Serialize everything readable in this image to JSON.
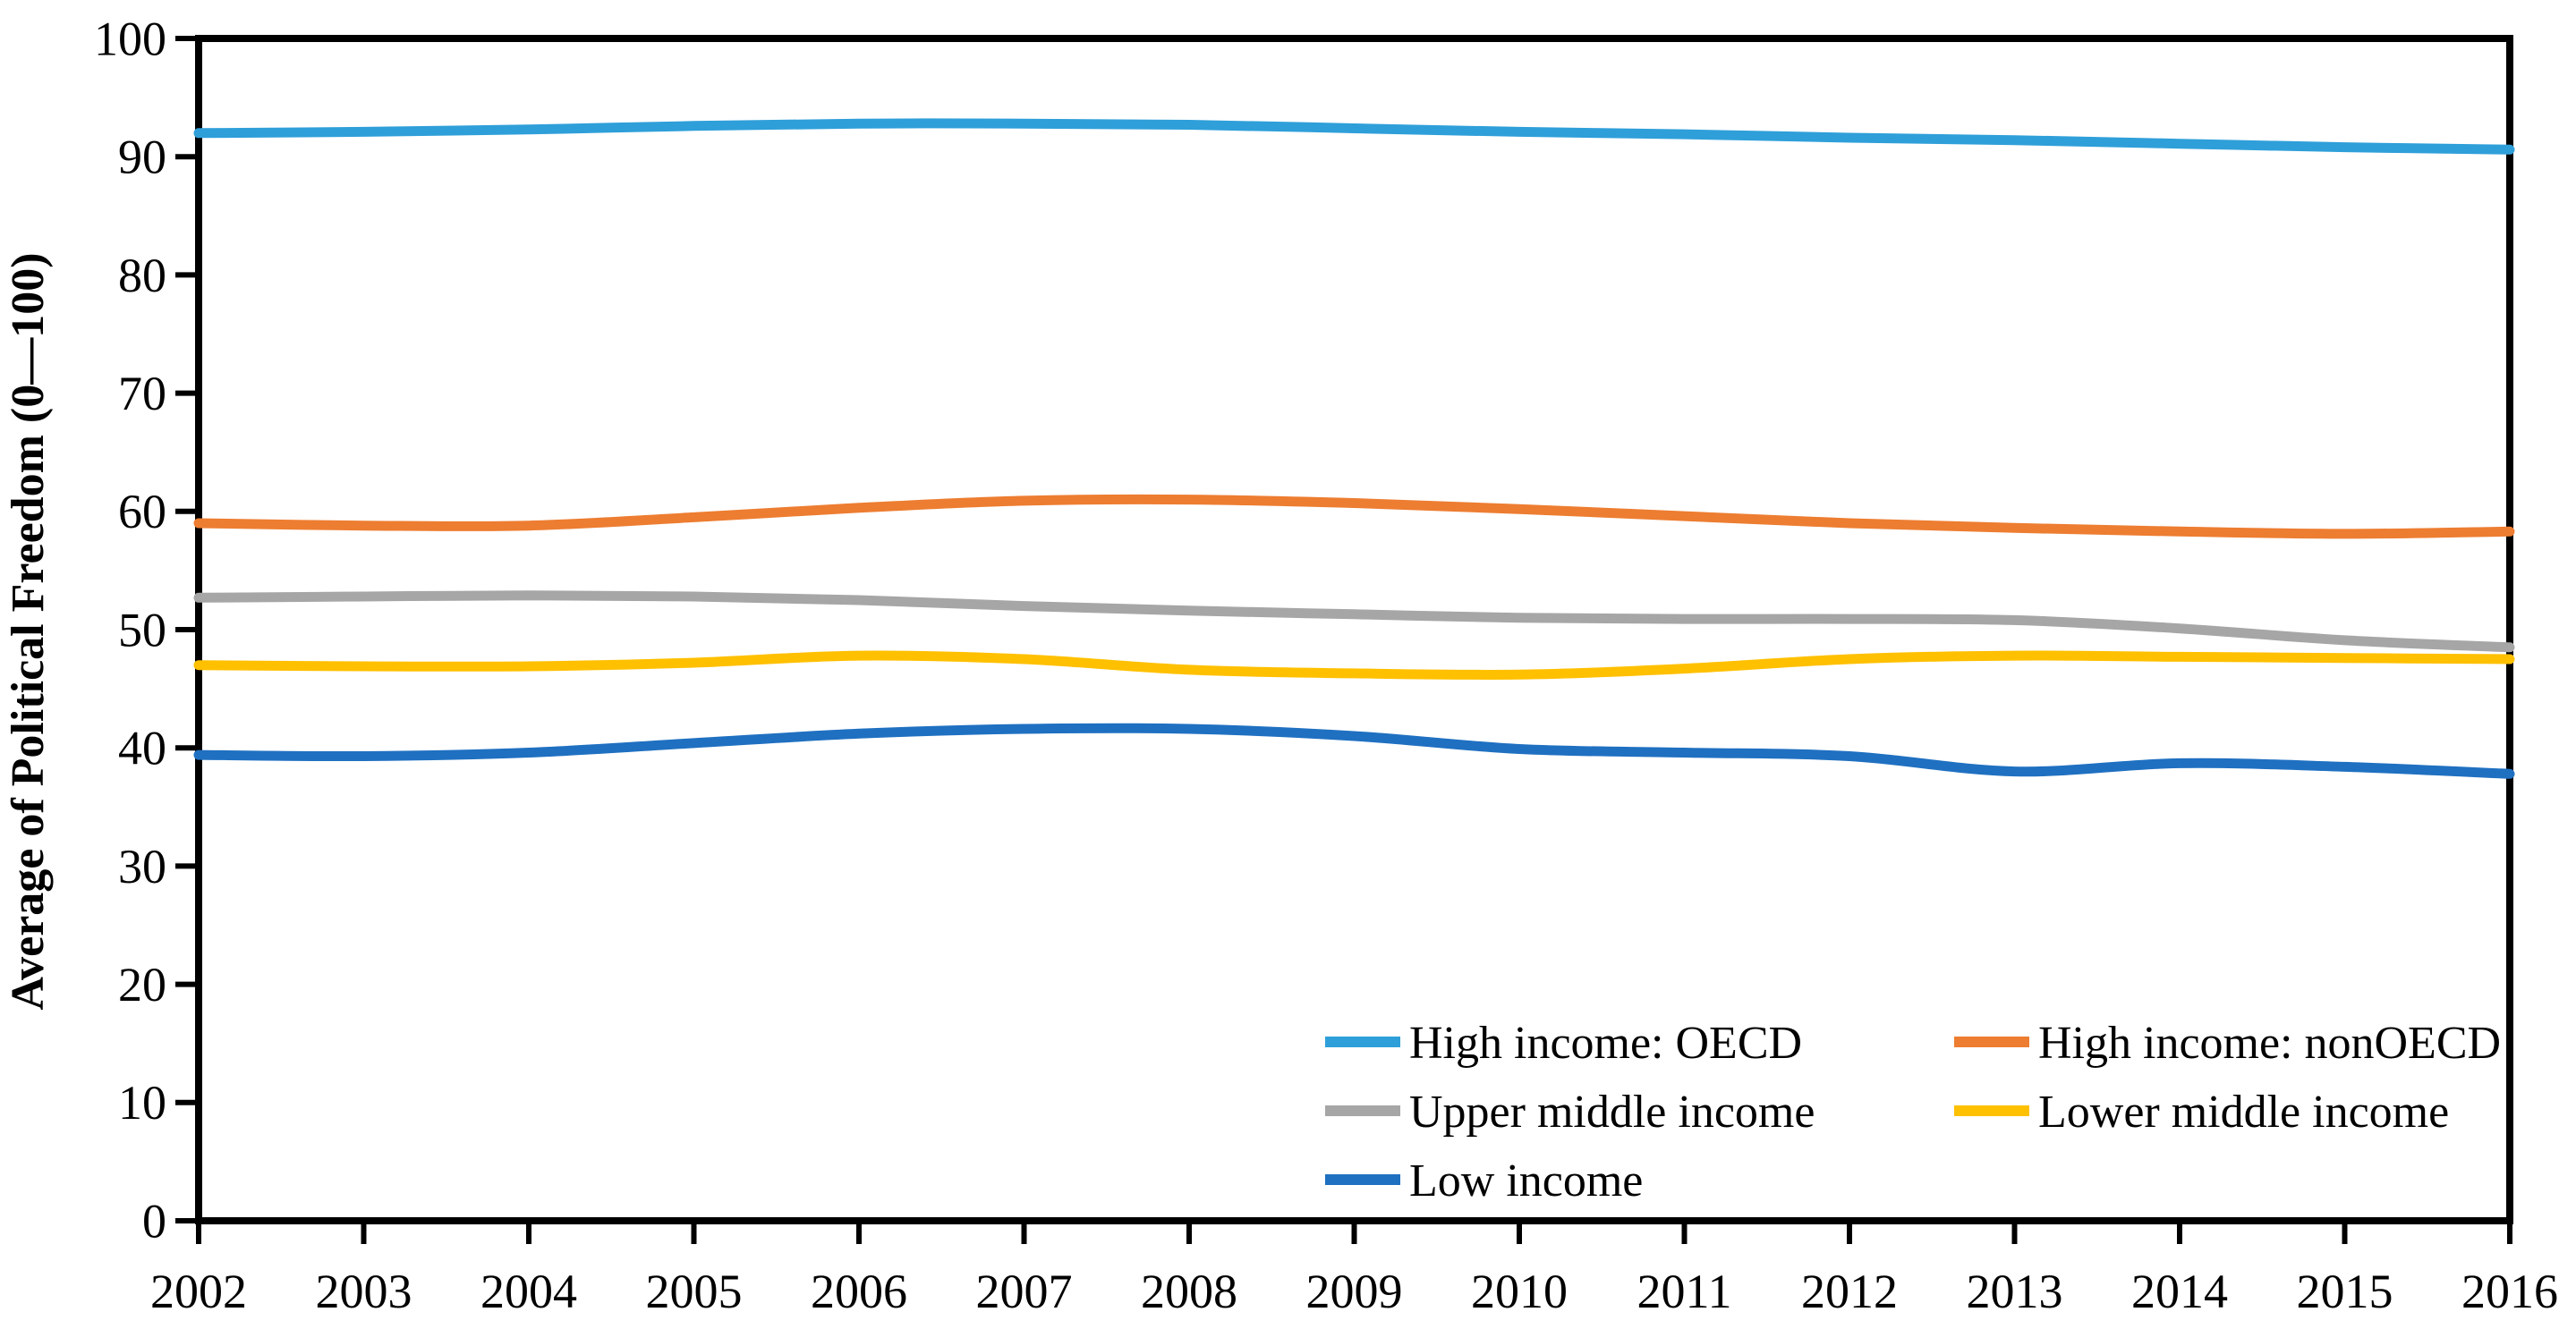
{
  "chart_data": {
    "type": "line",
    "title": "",
    "xlabel": "",
    "ylabel": "Average of Political Freedom (0—100)",
    "ylim": [
      0,
      100
    ],
    "y_tick_step": 10,
    "y_ticks": [
      0,
      10,
      20,
      30,
      40,
      50,
      60,
      70,
      80,
      90,
      100
    ],
    "x": [
      2002,
      2003,
      2004,
      2005,
      2006,
      2007,
      2008,
      2009,
      2010,
      2011,
      2012,
      2013,
      2014,
      2015,
      2016
    ],
    "grid": false,
    "plot_frame": true,
    "axis_color": "#000000",
    "background_color": "#ffffff",
    "legend_position": "inside-bottom-right-two-columns",
    "line_style": "smooth",
    "series": [
      {
        "name": "High income: OECD",
        "color": "#2F9FD9",
        "values": [
          92.0,
          92.1,
          92.3,
          92.6,
          92.8,
          92.8,
          92.7,
          92.4,
          92.1,
          91.9,
          91.6,
          91.4,
          91.1,
          90.8,
          90.6
        ]
      },
      {
        "name": "High income: nonOECD",
        "color": "#ED7D31",
        "values": [
          59.0,
          58.8,
          58.8,
          59.5,
          60.3,
          60.9,
          61.0,
          60.7,
          60.2,
          59.6,
          59.0,
          58.6,
          58.3,
          58.1,
          58.3
        ]
      },
      {
        "name": "Upper middle income",
        "color": "#A6A6A6",
        "values": [
          52.7,
          52.8,
          52.9,
          52.8,
          52.5,
          52.0,
          51.6,
          51.3,
          51.0,
          50.9,
          50.9,
          50.8,
          50.1,
          49.1,
          48.5
        ]
      },
      {
        "name": "Lower middle income",
        "color": "#FFC000",
        "values": [
          47.0,
          46.9,
          46.9,
          47.2,
          47.8,
          47.5,
          46.6,
          46.3,
          46.2,
          46.7,
          47.5,
          47.8,
          47.7,
          47.6,
          47.5
        ]
      },
      {
        "name": "Low income",
        "color": "#1F70C1",
        "values": [
          39.4,
          39.3,
          39.6,
          40.4,
          41.2,
          41.6,
          41.6,
          41.0,
          39.9,
          39.6,
          39.3,
          38.0,
          38.7,
          38.4,
          37.8
        ]
      }
    ]
  }
}
